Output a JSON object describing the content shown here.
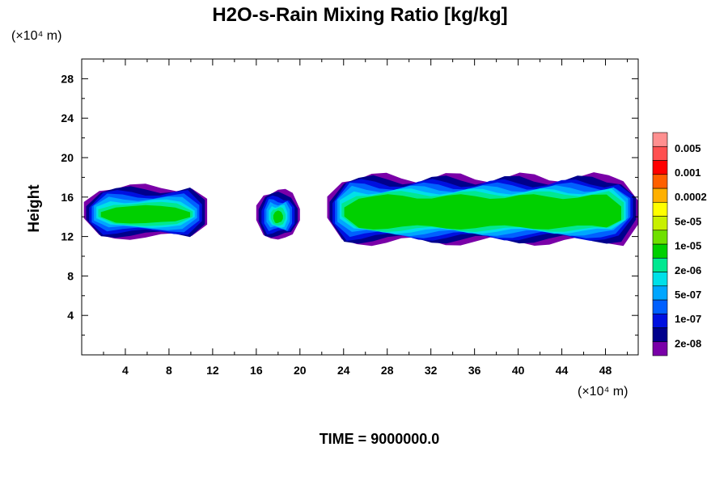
{
  "chart_data": {
    "type": "heatmap",
    "title": "H2O-s-Rain Mixing Ratio [kg/kg]",
    "xlabel": "(×10⁴ m)",
    "ylabel": "Height",
    "yunit": "(×10⁴ m)",
    "xlim": [
      0,
      51
    ],
    "ylim": [
      0,
      30
    ],
    "xticks": [
      4,
      8,
      12,
      16,
      20,
      24,
      28,
      32,
      36,
      40,
      44,
      48
    ],
    "yticks": [
      4,
      8,
      12,
      16,
      20,
      24,
      28
    ],
    "colorbar": {
      "labels": [
        "0.005",
        "0.001",
        "0.0002",
        "5e-05",
        "1e-05",
        "2e-06",
        "5e-07",
        "1e-07",
        "2e-08"
      ],
      "colors": [
        "#7a00a8",
        "#00008c",
        "#0010e0",
        "#0060ff",
        "#00a6ff",
        "#00e0e8",
        "#00e890",
        "#00d000",
        "#6fe000",
        "#c8f000",
        "#ffff00",
        "#ffb000",
        "#ff6000",
        "#ff0000",
        "#ff5050",
        "#ff9090"
      ]
    },
    "time_label": "TIME = 9000000.0",
    "clouds": [
      {
        "x_start": 0.2,
        "x_end": 11.5,
        "base": 12.0,
        "top": 17.0
      },
      {
        "x_start": 16.0,
        "x_end": 20.0,
        "base": 12.0,
        "top": 16.5
      },
      {
        "x_start": 22.5,
        "x_end": 51.0,
        "base": 11.5,
        "top": 18.0
      }
    ]
  }
}
